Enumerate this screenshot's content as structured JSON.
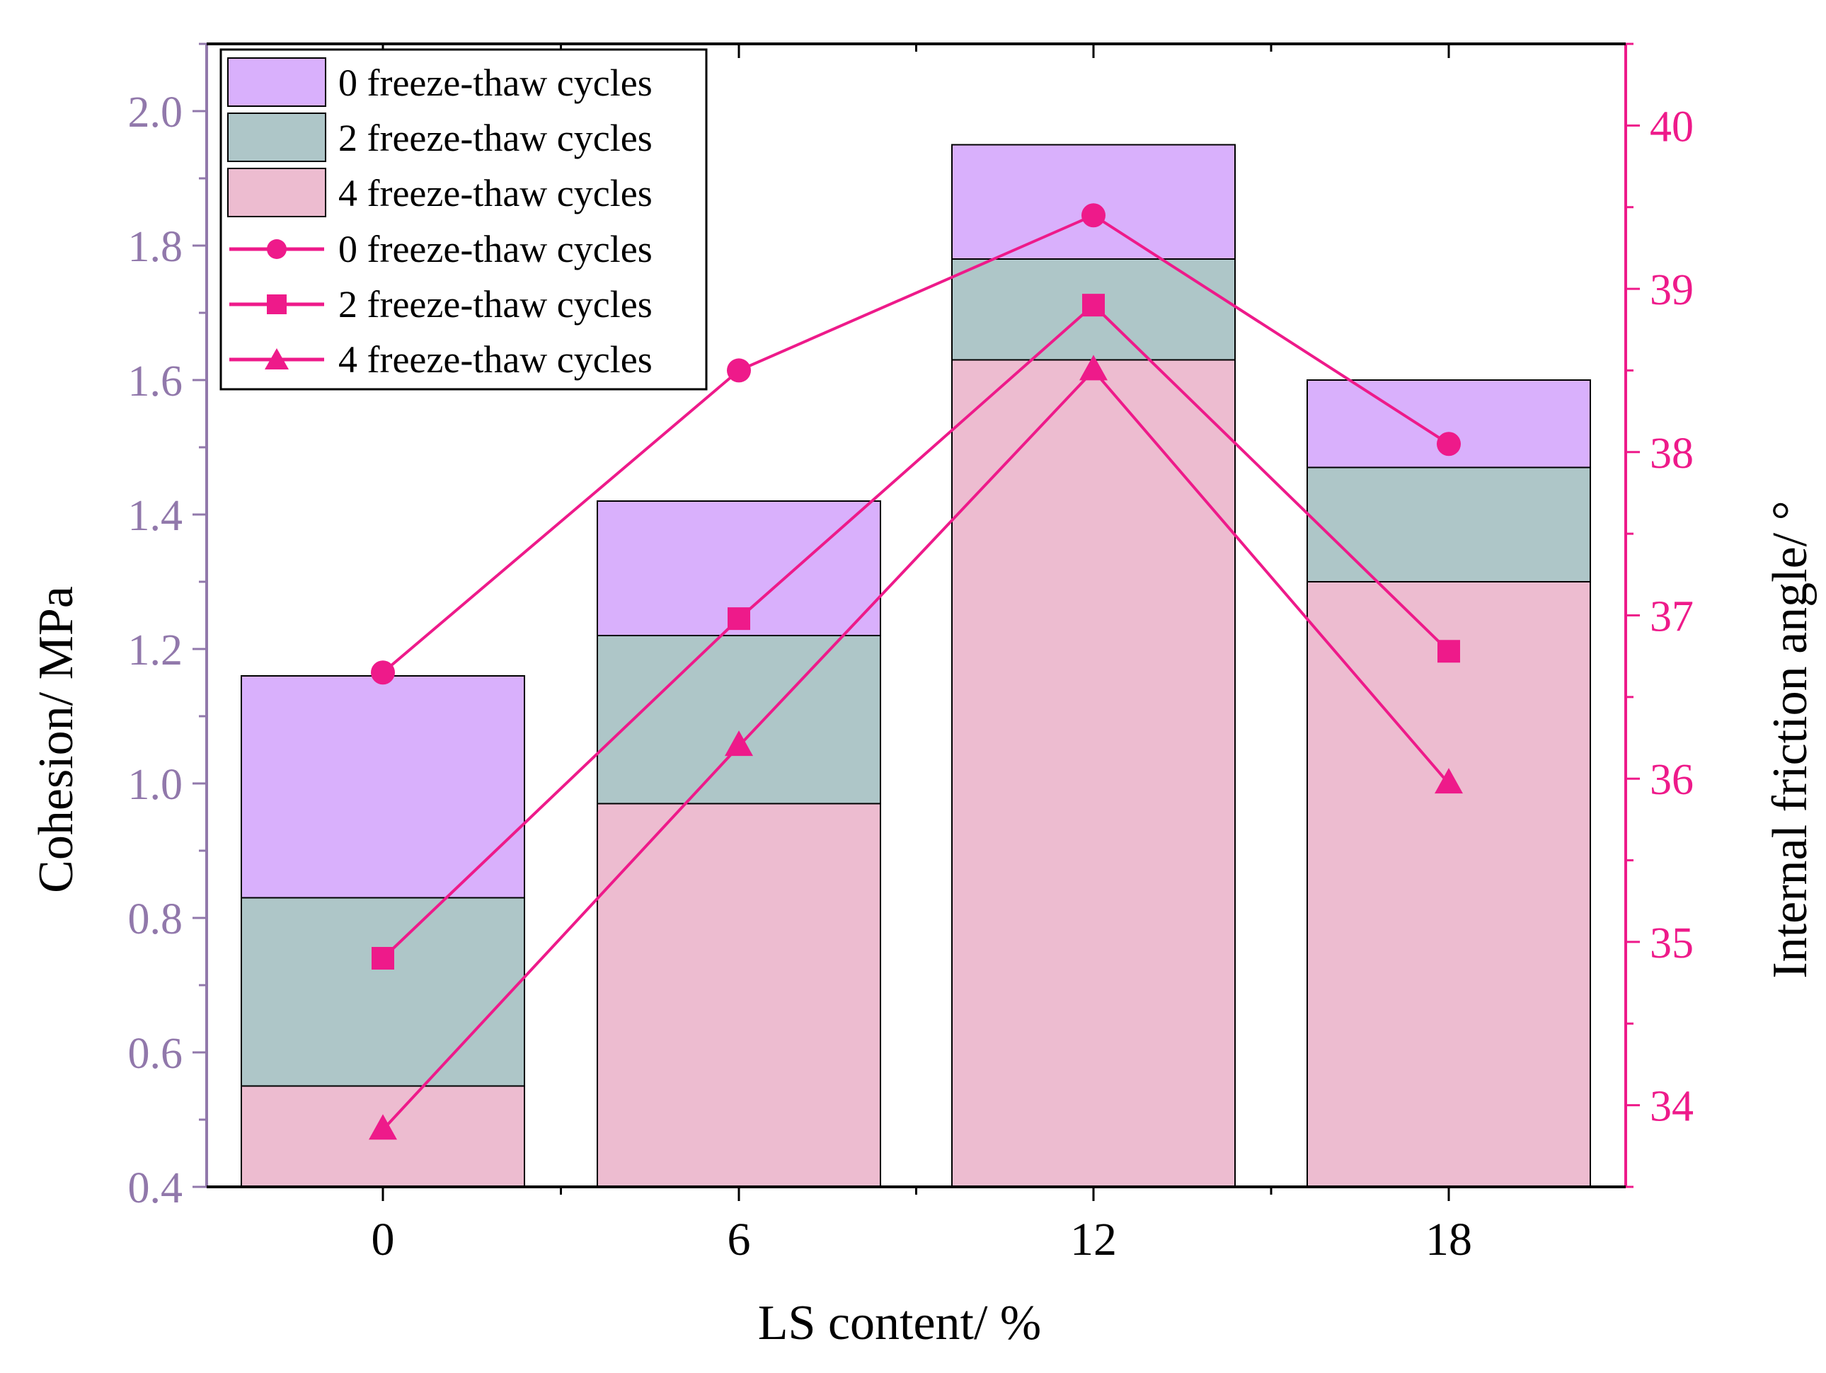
{
  "chart_data": {
    "type": "bar",
    "title": "",
    "xlabel": "LS content/ %",
    "ylabel": "Cohesion/ MPa",
    "y2label": "Internal friction angle/ °",
    "categories": [
      "0",
      "6",
      "12",
      "18"
    ],
    "ylim": [
      0.4,
      2.1
    ],
    "y2lim": [
      33.5,
      40.5
    ],
    "yticks": [
      "0.4",
      "0.6",
      "0.8",
      "1.0",
      "1.2",
      "1.4",
      "1.6",
      "1.8",
      "2.0"
    ],
    "y2ticks": [
      "34",
      "35",
      "36",
      "37",
      "38",
      "39",
      "40"
    ],
    "bar_series": [
      {
        "name": "0 freeze-thaw cycles",
        "values": [
          1.16,
          1.42,
          1.95,
          1.6
        ],
        "color": "#d9b0fc"
      },
      {
        "name": "2 freeze-thaw cycles",
        "values": [
          0.83,
          1.22,
          1.78,
          1.47
        ],
        "color": "#aec6c8"
      },
      {
        "name": "4 freeze-thaw cycles",
        "values": [
          0.55,
          0.97,
          1.63,
          1.3
        ],
        "color": "#edbcd0"
      }
    ],
    "line_series": [
      {
        "name": "0 freeze-thaw cycles",
        "marker": "circle",
        "values": [
          36.65,
          38.5,
          39.45,
          38.05
        ]
      },
      {
        "name": "2 freeze-thaw cycles",
        "marker": "square",
        "values": [
          34.9,
          36.98,
          38.9,
          36.78
        ]
      },
      {
        "name": "4 freeze-thaw cycles",
        "marker": "triangle",
        "values": [
          33.85,
          36.2,
          38.5,
          35.97
        ]
      }
    ],
    "legend_position": "top-left",
    "colors": {
      "left_axis": "#9178ab",
      "right_axis": "#ee1a8a",
      "line": "#ee1a8a",
      "bar_edge": "#000000"
    }
  }
}
